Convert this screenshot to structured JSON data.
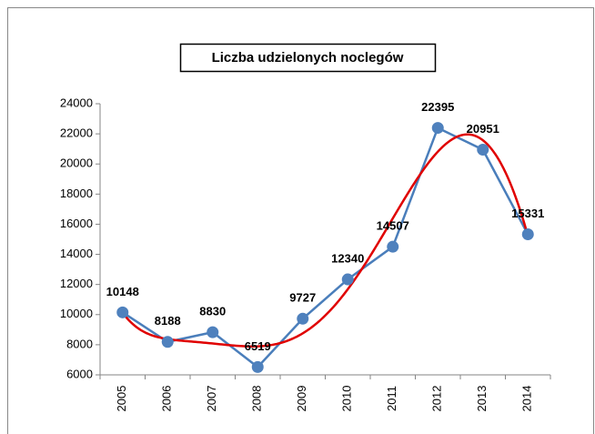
{
  "chart_data": {
    "type": "line",
    "title": "Liczba udzielonych  noclegów",
    "categories": [
      "2005",
      "2006",
      "2007",
      "2008",
      "2009",
      "2010",
      "2011",
      "2012",
      "2013",
      "2014"
    ],
    "series": [
      {
        "color": "#4a7ebb",
        "values": [
          10148,
          8188,
          8830,
          6519,
          9727,
          12340,
          14507,
          22395,
          20951,
          15331
        ]
      }
    ],
    "ylim": [
      6000,
      24000
    ],
    "yticks": [
      6000,
      8000,
      10000,
      12000,
      14000,
      16000,
      18000,
      20000,
      22000,
      24000
    ],
    "grid": false,
    "data_labels": true,
    "trendline": {
      "kind": "polynomial",
      "order": 6,
      "color": "#e00000"
    }
  }
}
